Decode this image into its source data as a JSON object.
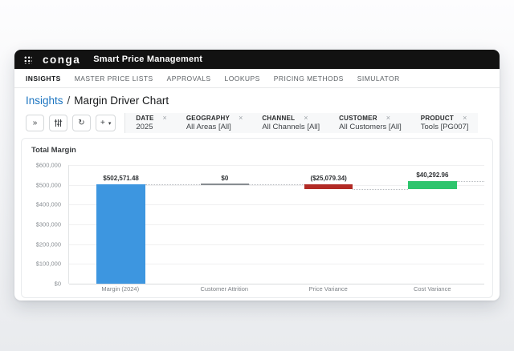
{
  "app": {
    "brand": "conga",
    "title": "Smart Price Management"
  },
  "nav": {
    "items": [
      {
        "label": "INSIGHTS",
        "active": true
      },
      {
        "label": "MASTER PRICE LISTS",
        "active": false
      },
      {
        "label": "APPROVALS",
        "active": false
      },
      {
        "label": "LOOKUPS",
        "active": false
      },
      {
        "label": "PRICING METHODS",
        "active": false
      },
      {
        "label": "SIMULATOR",
        "active": false
      }
    ]
  },
  "breadcrumb": {
    "section": "Insights",
    "separator": "/",
    "page": "Margin Driver Chart"
  },
  "toolbar": {
    "collapse_glyph": "»",
    "refresh_glyph": "↻",
    "add_glyph": "+",
    "caret_glyph": "▾",
    "filter_close_glyph": "×",
    "filters": [
      {
        "label": "DATE",
        "value": "2025"
      },
      {
        "label": "GEOGRAPHY",
        "value": "All Areas [All]"
      },
      {
        "label": "CHANNEL",
        "value": "All Channels [All]"
      },
      {
        "label": "CUSTOMER",
        "value": "All Customers [All]"
      },
      {
        "label": "PRODUCT",
        "value": "Tools [PG007]"
      }
    ]
  },
  "chart_data": {
    "type": "bar",
    "subtype": "waterfall",
    "title": "Total Margin",
    "categories": [
      "Margin (2024)",
      "Customer Attrition",
      "Price Variance",
      "Cost Variance"
    ],
    "values": [
      502571.48,
      0,
      -25079.34,
      40292.96
    ],
    "labels": [
      "$502,571.48",
      "$0",
      "($25,079.34)",
      "$40,292.96"
    ],
    "colors": [
      "#3d96e0",
      "#878c91",
      "#b22a25",
      "#2ec56d"
    ],
    "ylim": [
      0,
      600000
    ],
    "y_ticks": [
      "$600,000",
      "$500,000",
      "$400,000",
      "$300,000",
      "$200,000",
      "$100,000",
      "$0"
    ],
    "grid": true,
    "legend": false
  }
}
